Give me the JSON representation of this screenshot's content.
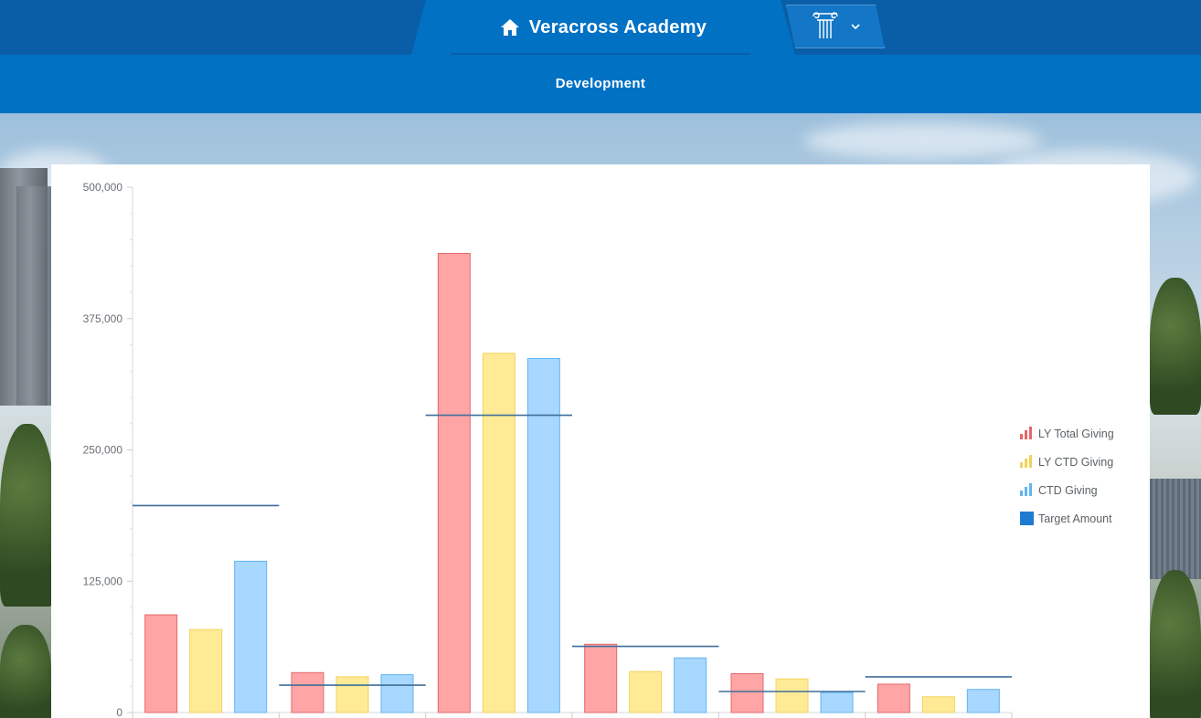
{
  "header": {
    "app_title": "Veracross Academy",
    "home_icon": "home-icon",
    "logo_icon": "column-logo-icon",
    "dropdown_icon": "chevron-down-icon"
  },
  "subnav": {
    "label": "Development"
  },
  "colors": {
    "topbar": "#0a5ea8",
    "nav": "#0171c4",
    "ly_total": "#ffa5a5",
    "ly_ctd": "#ffea96",
    "ctd": "#a8d7ff",
    "target": "#3f6e99"
  },
  "chart_data": {
    "type": "bar",
    "title": "",
    "xlabel": "",
    "ylabel": "",
    "ylim": [
      0,
      500000
    ],
    "yticks": [
      0,
      125000,
      250000,
      375000,
      500000
    ],
    "ytick_labels": [
      "0",
      "125,000",
      "250,000",
      "375,000",
      "500,000"
    ],
    "categories": [
      "",
      "",
      "",
      "",
      "",
      ""
    ],
    "series": [
      {
        "name": "LY Total Giving",
        "kind": "bar",
        "values": [
          93000,
          38000,
          437000,
          65000,
          37000,
          27000
        ]
      },
      {
        "name": "LY CTD Giving",
        "kind": "bar",
        "values": [
          79000,
          34000,
          342000,
          39000,
          32000,
          15000
        ]
      },
      {
        "name": "CTD Giving",
        "kind": "bar",
        "values": [
          144000,
          36000,
          337000,
          52000,
          19000,
          22000
        ]
      },
      {
        "name": "Target Amount",
        "kind": "target-line",
        "values": [
          197000,
          26000,
          283000,
          63000,
          20000,
          34000
        ]
      }
    ],
    "legend_position": "right",
    "grid": false
  }
}
